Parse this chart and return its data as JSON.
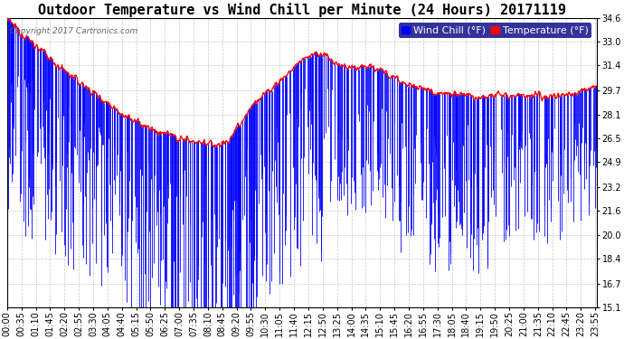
{
  "title": "Outdoor Temperature vs Wind Chill per Minute (24 Hours) 20171119",
  "copyright": "Copyright 2017 Cartronics.com",
  "legend_wind_chill": "Wind Chill (°F)",
  "legend_temperature": "Temperature (°F)",
  "ylim_min": 15.1,
  "ylim_max": 34.6,
  "yticks": [
    15.1,
    16.7,
    18.4,
    20.0,
    21.6,
    23.2,
    24.9,
    26.5,
    28.1,
    29.7,
    31.4,
    33.0,
    34.6
  ],
  "background_color": "#ffffff",
  "plot_bg_color": "#ffffff",
  "grid_color": "#bbbbbb",
  "wind_chill_color": "#0000ff",
  "temperature_color": "#ff0000",
  "title_fontsize": 11,
  "legend_fontsize": 8,
  "tick_fontsize": 7,
  "num_minutes": 1440,
  "x_tick_interval": 35,
  "temp_curve": [
    [
      0,
      34.5
    ],
    [
      60,
      33.0
    ],
    [
      120,
      31.5
    ],
    [
      180,
      30.2
    ],
    [
      240,
      29.0
    ],
    [
      300,
      27.8
    ],
    [
      360,
      27.0
    ],
    [
      420,
      26.5
    ],
    [
      480,
      26.2
    ],
    [
      510,
      26.0
    ],
    [
      540,
      26.3
    ],
    [
      570,
      27.5
    ],
    [
      600,
      28.8
    ],
    [
      630,
      29.5
    ],
    [
      660,
      30.2
    ],
    [
      690,
      31.0
    ],
    [
      720,
      31.8
    ],
    [
      750,
      32.2
    ],
    [
      780,
      32.0
    ],
    [
      810,
      31.4
    ],
    [
      840,
      31.2
    ],
    [
      870,
      31.4
    ],
    [
      900,
      31.2
    ],
    [
      930,
      30.8
    ],
    [
      960,
      30.4
    ],
    [
      990,
      30.0
    ],
    [
      1020,
      29.8
    ],
    [
      1050,
      29.6
    ],
    [
      1080,
      29.5
    ],
    [
      1110,
      29.4
    ],
    [
      1140,
      29.3
    ],
    [
      1170,
      29.4
    ],
    [
      1200,
      29.5
    ],
    [
      1230,
      29.4
    ],
    [
      1260,
      29.3
    ],
    [
      1320,
      29.3
    ],
    [
      1380,
      29.5
    ],
    [
      1440,
      30.0
    ]
  ]
}
